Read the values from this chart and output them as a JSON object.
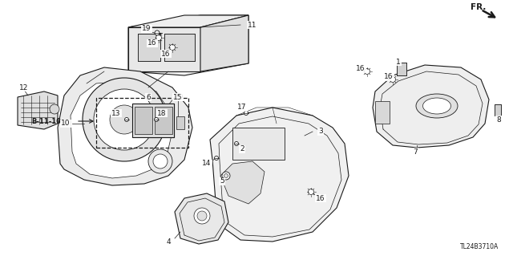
{
  "bg_color": "#ffffff",
  "line_color": "#1a1a1a",
  "fig_width": 6.4,
  "fig_height": 3.19,
  "dpi": 100,
  "diagram_code": "TL24B3710A"
}
